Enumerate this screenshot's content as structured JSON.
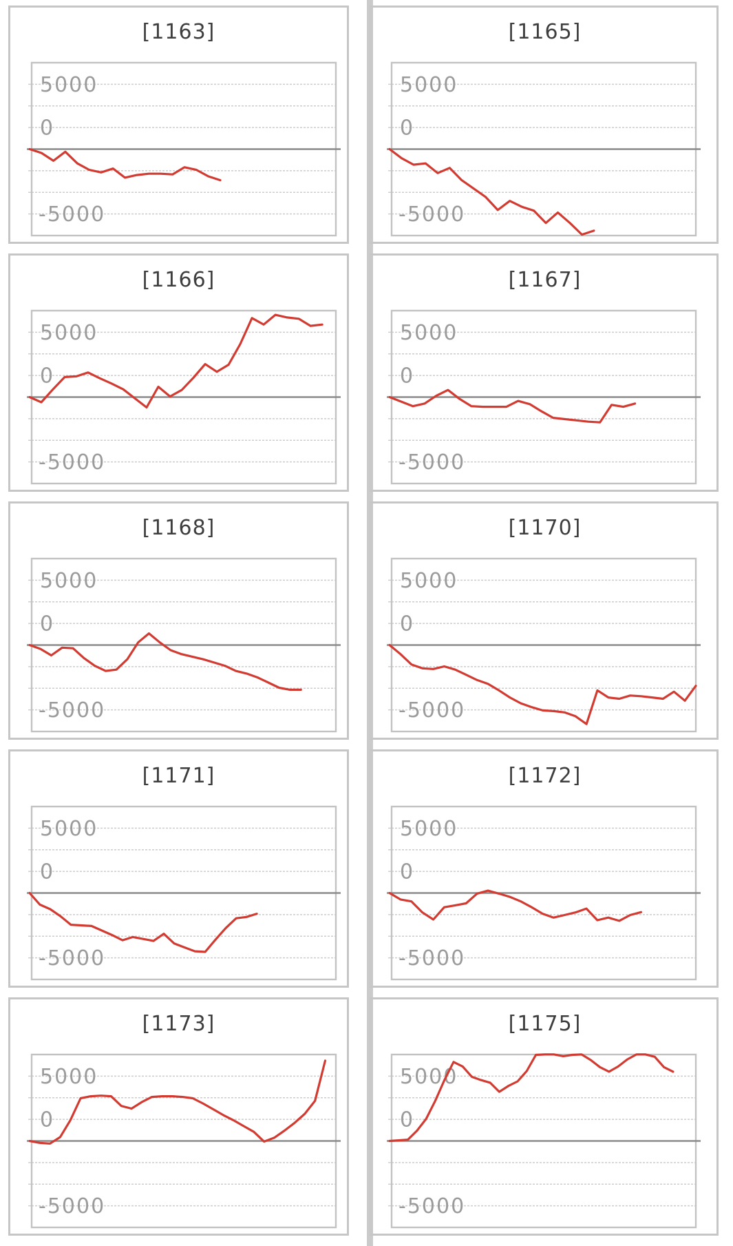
{
  "page": {
    "background": "#ffffff",
    "columns": 2,
    "rows": 5
  },
  "chart_style": {
    "line_color": "#d23b31",
    "grid_color": "#cccccc",
    "zero_line_color": "#8a8a8a",
    "plot_border_color": "#c2c2c2",
    "card_border_color": "#c6c6c6",
    "label_color": "#9b9b9b",
    "title_color": "#3e3e3e"
  },
  "y_axis": {
    "tick_labels": [
      "5000",
      "0",
      "-5000"
    ],
    "tick_grid_index": [
      1,
      3,
      7
    ],
    "grid_divisions": 8,
    "zero_grid_index": 4,
    "units_per_94px": 5000,
    "grid_style": "dashed",
    "zero_line_style": "solid"
  },
  "chart_data": [
    {
      "type": "line",
      "title": "[1163]",
      "end_frac": 0.62,
      "values": [
        0,
        -300,
        -900,
        -200,
        -1100,
        -1600,
        -1800,
        -1500,
        -2200,
        -2000,
        -1900,
        -1900,
        -1950,
        -1400,
        -1600,
        -2100,
        -2400
      ]
    },
    {
      "type": "line",
      "title": "[1165]",
      "end_frac": 0.665,
      "values": [
        0,
        -700,
        -1200,
        -1100,
        -1850,
        -1450,
        -2400,
        -3050,
        -3700,
        -4700,
        -4000,
        -4450,
        -4750,
        -5700,
        -4900,
        -5700,
        -6600,
        -6300
      ]
    },
    {
      "type": "line",
      "title": "[1166]",
      "end_frac": 0.955,
      "values": [
        0,
        -400,
        600,
        1550,
        1600,
        1900,
        1450,
        1050,
        600,
        -100,
        -800,
        800,
        50,
        550,
        1500,
        2550,
        1950,
        2500,
        4100,
        6100,
        5600,
        6350,
        6150,
        6050,
        5500,
        5600
      ]
    },
    {
      "type": "line",
      "title": "[1167]",
      "end_frac": 0.8,
      "values": [
        0,
        -350,
        -700,
        -500,
        100,
        550,
        -150,
        -700,
        -750,
        -750,
        -750,
        -300,
        -550,
        -1100,
        -1600,
        -1700,
        -1800,
        -1900,
        -1950,
        -600,
        -750,
        -500
      ]
    },
    {
      "type": "line",
      "title": "[1168]",
      "end_frac": 0.885,
      "values": [
        0,
        -300,
        -800,
        -200,
        -250,
        -1000,
        -1600,
        -2000,
        -1900,
        -1100,
        200,
        900,
        200,
        -400,
        -700,
        -900,
        -1100,
        -1350,
        -1600,
        -2000,
        -2200,
        -2500,
        -2900,
        -3300,
        -3450,
        -3450
      ]
    },
    {
      "type": "line",
      "title": "[1170]",
      "end_frac": 1.0,
      "values": [
        0,
        -700,
        -1500,
        -1800,
        -1850,
        -1650,
        -1900,
        -2300,
        -2700,
        -3000,
        -3500,
        -4050,
        -4500,
        -4800,
        -5050,
        -5100,
        -5200,
        -5500,
        -6100,
        -3500,
        -4050,
        -4150,
        -3900,
        -3950,
        -4050,
        -4150,
        -3600,
        -4300,
        -3150
      ]
    },
    {
      "type": "line",
      "title": "[1171]",
      "end_frac": 0.74,
      "values": [
        0,
        -900,
        -1250,
        -1800,
        -2450,
        -2500,
        -2550,
        -2900,
        -3250,
        -3650,
        -3400,
        -3550,
        -3700,
        -3150,
        -3900,
        -4200,
        -4500,
        -4550,
        -3600,
        -2700,
        -1950,
        -1850,
        -1600
      ]
    },
    {
      "type": "line",
      "title": "[1172]",
      "end_frac": 0.82,
      "values": [
        0,
        -500,
        -650,
        -1500,
        -2050,
        -1100,
        -950,
        -800,
        -50,
        180,
        -50,
        -300,
        -650,
        -1100,
        -1600,
        -1900,
        -1700,
        -1500,
        -1200,
        -2100,
        -1900,
        -2150,
        -1700,
        -1480
      ]
    },
    {
      "type": "line",
      "title": "[1173]",
      "end_frac": 0.965,
      "values": [
        0,
        -150,
        -200,
        300,
        1600,
        3300,
        3450,
        3500,
        3450,
        2700,
        2500,
        3000,
        3400,
        3450,
        3450,
        3400,
        3300,
        2900,
        2450,
        2000,
        1600,
        1150,
        700,
        -50,
        250,
        800,
        1400,
        2100,
        3100,
        6200
      ]
    },
    {
      "type": "line",
      "title": "[1175]",
      "end_frac": 0.925,
      "values": [
        0,
        50,
        100,
        800,
        1700,
        3100,
        4700,
        6100,
        5750,
        4950,
        4700,
        4500,
        3800,
        4250,
        4600,
        5400,
        6650,
        6680,
        6680,
        6550,
        6650,
        6680,
        6250,
        5700,
        5350,
        5750,
        6300,
        6680,
        6680,
        6500,
        5700,
        5350
      ]
    }
  ]
}
